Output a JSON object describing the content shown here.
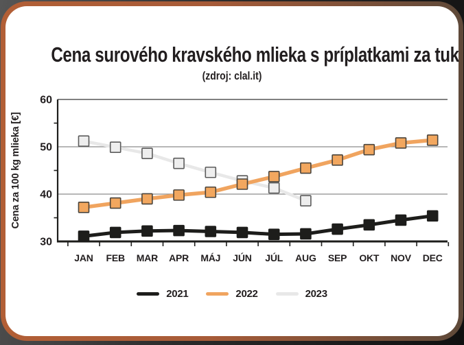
{
  "title": "Cena surového kravského mlieka s príplatkami za tuk",
  "subtitle": "(zdroj: clal.it)",
  "colors": {
    "axis": "#1d1d1b",
    "gridline": "#8c8c8c",
    "top_border_line": "#565656",
    "text": "#221e1f",
    "card_border_left": "#b25f36",
    "card_border_right": "#5e4939",
    "card_background": "#ffffff"
  },
  "chart_data": {
    "type": "line",
    "title": "Cena surového kravského mlieka s príplatkami za tuk",
    "subtitle": "(zdroj: clal.it)",
    "categories": [
      "JAN",
      "FEB",
      "MAR",
      "APR",
      "MÁJ",
      "JÚN",
      "JÚL",
      "AUG",
      "SEP",
      "OKT",
      "NOV",
      "DEC"
    ],
    "series": [
      {
        "name": "2021",
        "color": "#1d1d1b",
        "marker_fill": "#1d1d1b",
        "marker_stroke": "#1d1d1b",
        "values": [
          31.1,
          31.9,
          32.2,
          32.3,
          32.1,
          31.9,
          31.5,
          31.6,
          32.6,
          33.5,
          34.5,
          35.4
        ]
      },
      {
        "name": "2022",
        "color": "#f0a45f",
        "marker_fill": "#f2a75f",
        "marker_stroke": "#4a443c",
        "values": [
          37.2,
          38.1,
          39.0,
          39.8,
          40.4,
          42.1,
          43.7,
          45.5,
          47.2,
          49.4,
          50.8,
          51.4
        ]
      },
      {
        "name": "2023",
        "color": "#e8e8e8",
        "marker_fill": "#eeeeee",
        "marker_stroke": "#5b5b5b",
        "values": [
          51.2,
          49.9,
          48.6,
          46.5,
          44.6,
          42.8,
          41.3,
          38.6,
          null,
          null,
          null,
          null
        ]
      }
    ],
    "draw_order": [
      "2023",
      "2021",
      "2022"
    ],
    "xlabel": "",
    "ylabel": "Cena za 100 kg mlieka [€]",
    "ylim": [
      30,
      60
    ],
    "yticks": [
      30,
      40,
      50,
      60
    ],
    "yticks_minor": [
      35,
      45,
      55
    ],
    "grid": "horizontal gridlines at 40 and 50, top border at 60",
    "legend_position": "bottom-center"
  },
  "legend": {
    "items": [
      {
        "label": "2021"
      },
      {
        "label": "2022"
      },
      {
        "label": "2023"
      }
    ]
  }
}
